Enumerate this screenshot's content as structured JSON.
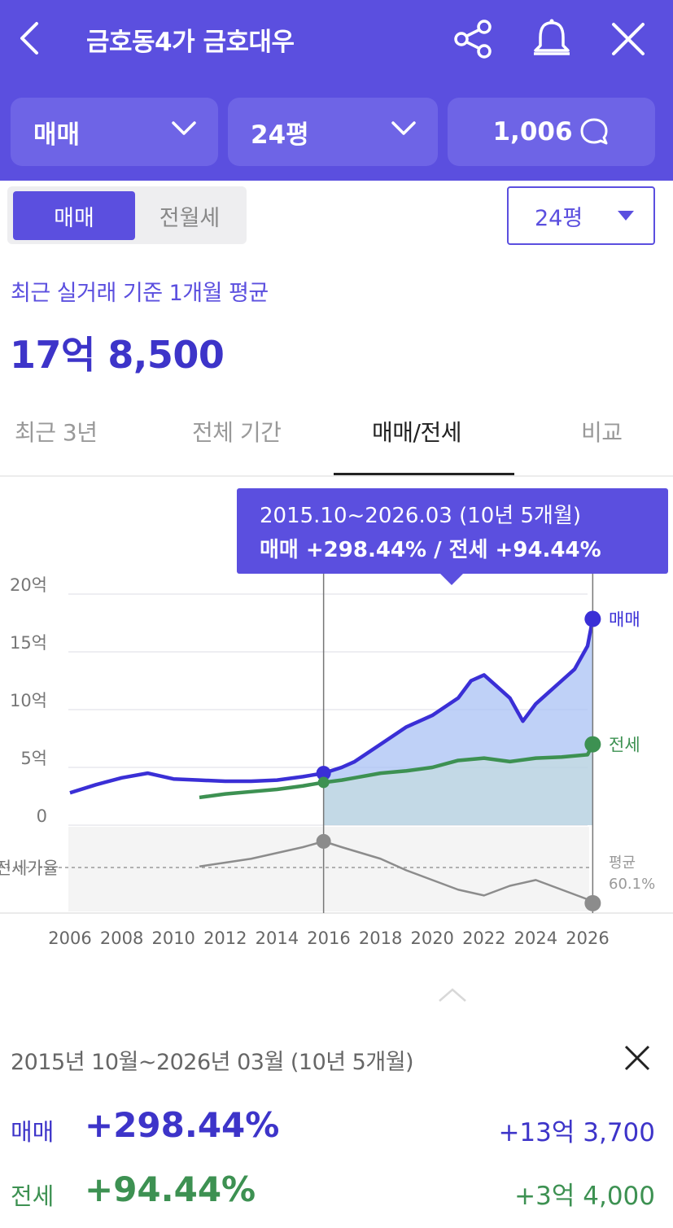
{
  "header": {
    "title": "금호동4가 금호대우",
    "selectors": [
      {
        "label": "매매"
      },
      {
        "label": "24평"
      },
      {
        "label": "1,006"
      }
    ]
  },
  "price_toggle": {
    "active": "매매",
    "inactive": "전월세"
  },
  "area_dropdown": {
    "value": "24평"
  },
  "price": {
    "caption": "최근 실거래 기준 1개월 평균",
    "value": "17억 8,500"
  },
  "tabs": [
    {
      "label": "최근 3년"
    },
    {
      "label": "전체 기간"
    },
    {
      "label": "매매/전세",
      "active": true
    },
    {
      "label": "비교"
    }
  ],
  "tooltip": {
    "range": "2015.10~2026.03 (10년 5개월)",
    "rates": "매매 +298.44%  /  전세 +94.44%"
  },
  "chart_data": {
    "type": "line",
    "y_axis_unit": "억",
    "ylim": [
      0,
      20
    ],
    "yticks": [
      "20억",
      "15억",
      "10억",
      "5억",
      "0"
    ],
    "xticks": [
      "2006",
      "2008",
      "2010",
      "2012",
      "2014",
      "2016",
      "2018",
      "2020",
      "2022",
      "2024",
      "2026"
    ],
    "ratio_label": "전세가율",
    "ratio_avg_label": "평균",
    "ratio_avg_value": "60.1%",
    "series": [
      {
        "name": "매매",
        "color": "#3a2fd6",
        "x": [
          2006,
          2007,
          2008,
          2009,
          2010,
          2011,
          2012,
          2013,
          2014,
          2015,
          2015.8,
          2016.5,
          2017,
          2018,
          2019,
          2020,
          2021,
          2021.5,
          2022,
          2022.5,
          2023,
          2023.5,
          2024,
          2024.5,
          2025,
          2025.5,
          2026,
          2026.2
        ],
        "values": [
          2.8,
          3.5,
          4.1,
          4.5,
          4.0,
          3.9,
          3.8,
          3.8,
          3.9,
          4.2,
          4.5,
          5.0,
          5.5,
          7.0,
          8.5,
          9.5,
          11.0,
          12.5,
          13.0,
          12.0,
          11.0,
          9.0,
          10.5,
          11.5,
          12.5,
          13.5,
          15.5,
          17.85
        ]
      },
      {
        "name": "전세",
        "color": "#3d9152",
        "x": [
          2011,
          2012,
          2013,
          2014,
          2015,
          2015.8,
          2016.5,
          2017,
          2018,
          2019,
          2020,
          2021,
          2022,
          2023,
          2024,
          2025,
          2026,
          2026.2
        ],
        "values": [
          2.4,
          2.7,
          2.9,
          3.1,
          3.4,
          3.7,
          3.9,
          4.1,
          4.5,
          4.7,
          5.0,
          5.6,
          5.8,
          5.5,
          5.8,
          5.9,
          6.1,
          7.0
        ]
      },
      {
        "name": "전세가율",
        "color": "#8c8c8c",
        "x": [
          2011,
          2012,
          2013,
          2014,
          2015,
          2015.8,
          2016.5,
          2017,
          2018,
          2019,
          2020,
          2021,
          2022,
          2023,
          2024,
          2025,
          2026,
          2026.2
        ],
        "values": [
          62,
          64,
          66,
          69,
          72,
          75,
          72,
          70,
          66,
          60,
          55,
          50,
          47,
          52,
          55,
          50,
          45,
          43
        ]
      }
    ],
    "selection": {
      "start": 2015.8,
      "end": 2026.2
    }
  },
  "summary": {
    "range": "2015년 10월~2026년 03월 (10년 5개월)",
    "rows": [
      {
        "label": "매매",
        "rate": "+298.44%",
        "amount": "+13억 3,700"
      },
      {
        "label": "전세",
        "rate": "+94.44%",
        "amount": "+3억 4,000"
      }
    ]
  }
}
